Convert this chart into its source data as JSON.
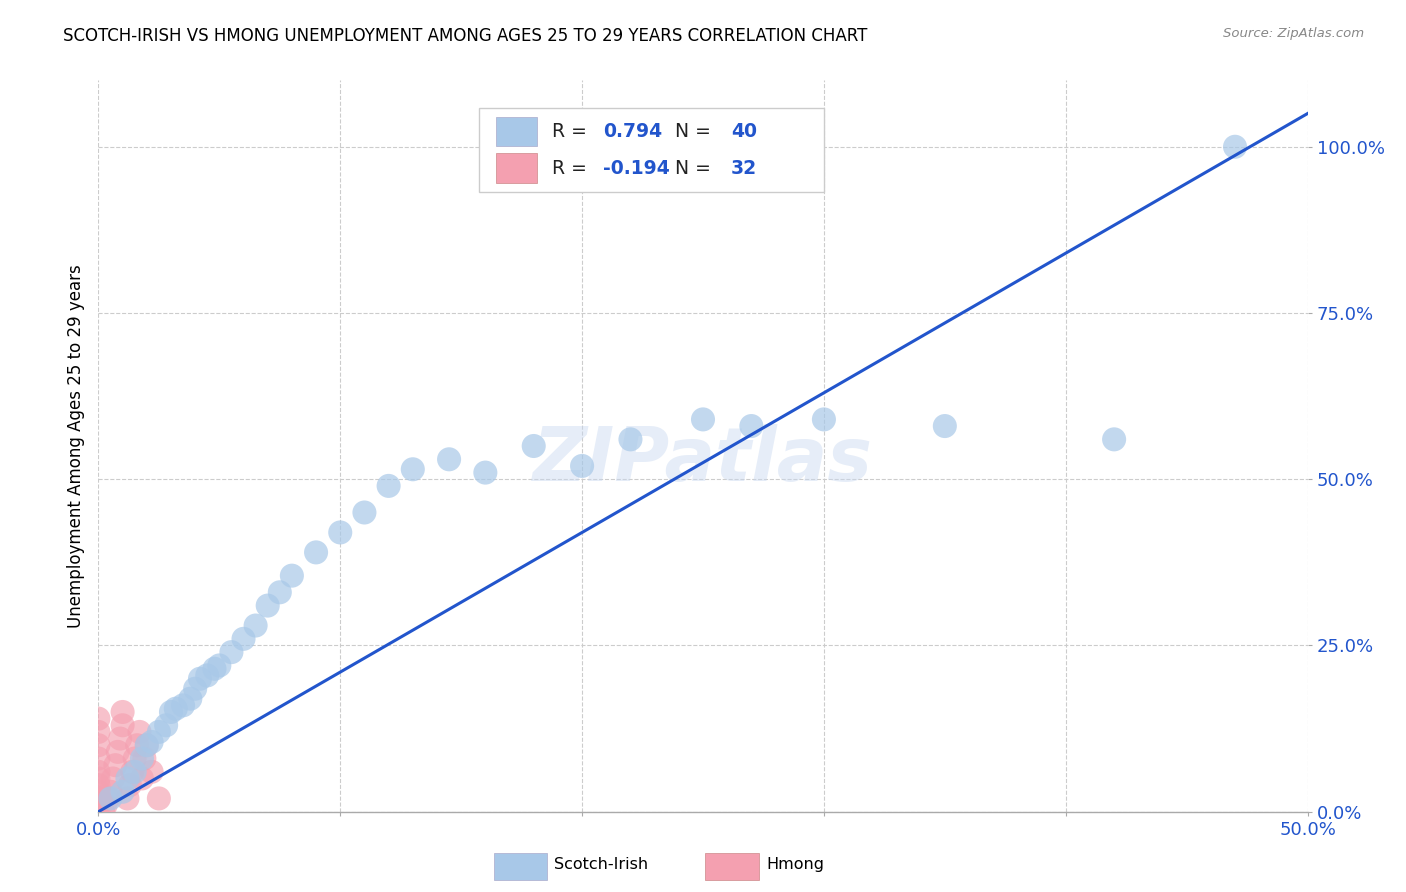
{
  "title": "SCOTCH-IRISH VS HMONG UNEMPLOYMENT AMONG AGES 25 TO 29 YEARS CORRELATION CHART",
  "source": "Source: ZipAtlas.com",
  "ylabel": "Unemployment Among Ages 25 to 29 years",
  "yticks": [
    0.0,
    0.25,
    0.5,
    0.75,
    1.0
  ],
  "ytick_labels": [
    "0.0%",
    "25.0%",
    "50.0%",
    "75.0%",
    "100.0%"
  ],
  "xmin": 0.0,
  "xmax": 0.5,
  "ymin": 0.0,
  "ymax": 1.1,
  "scotch_irish_R": 0.794,
  "scotch_irish_N": 40,
  "hmong_R": -0.194,
  "hmong_N": 32,
  "scotch_irish_color": "#a8c8e8",
  "hmong_color": "#f4a0b0",
  "line_color": "#2255cc",
  "scotch_irish_x": [
    0.005,
    0.01,
    0.012,
    0.015,
    0.018,
    0.02,
    0.022,
    0.025,
    0.028,
    0.03,
    0.032,
    0.035,
    0.038,
    0.04,
    0.042,
    0.045,
    0.048,
    0.05,
    0.055,
    0.06,
    0.065,
    0.07,
    0.075,
    0.08,
    0.09,
    0.1,
    0.11,
    0.12,
    0.13,
    0.145,
    0.16,
    0.18,
    0.2,
    0.22,
    0.25,
    0.27,
    0.3,
    0.35,
    0.42,
    0.47
  ],
  "scotch_irish_y": [
    0.02,
    0.03,
    0.05,
    0.06,
    0.08,
    0.1,
    0.105,
    0.12,
    0.13,
    0.15,
    0.155,
    0.16,
    0.17,
    0.185,
    0.2,
    0.205,
    0.215,
    0.22,
    0.24,
    0.26,
    0.28,
    0.31,
    0.33,
    0.355,
    0.39,
    0.42,
    0.45,
    0.49,
    0.515,
    0.53,
    0.51,
    0.55,
    0.52,
    0.56,
    0.59,
    0.58,
    0.59,
    0.58,
    0.56,
    1.0
  ],
  "hmong_x": [
    0.0,
    0.0,
    0.0,
    0.0,
    0.0,
    0.0,
    0.0,
    0.0,
    0.0,
    0.0,
    0.0,
    0.002,
    0.003,
    0.004,
    0.005,
    0.006,
    0.007,
    0.008,
    0.009,
    0.01,
    0.01,
    0.012,
    0.013,
    0.014,
    0.015,
    0.016,
    0.017,
    0.018,
    0.019,
    0.02,
    0.022,
    0.025
  ],
  "hmong_y": [
    0.0,
    0.01,
    0.02,
    0.03,
    0.04,
    0.05,
    0.06,
    0.08,
    0.1,
    0.12,
    0.14,
    0.0,
    0.01,
    0.02,
    0.03,
    0.05,
    0.07,
    0.09,
    0.11,
    0.13,
    0.15,
    0.02,
    0.04,
    0.06,
    0.08,
    0.1,
    0.12,
    0.05,
    0.08,
    0.1,
    0.06,
    0.02
  ],
  "watermark": "ZIPatlas",
  "background_color": "#ffffff",
  "grid_color": "#cccccc"
}
